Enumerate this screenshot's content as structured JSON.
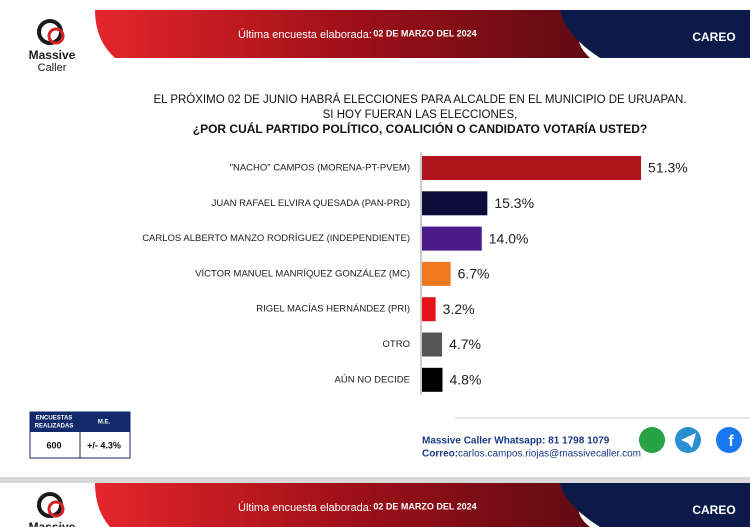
{
  "header": {
    "survey_label": "Última encuesta elaborada:",
    "survey_date": "02 DE MARZO DEL 2024",
    "tab": "CAREO"
  },
  "logo": {
    "line1": "Massive",
    "line2": "Caller"
  },
  "chart_data": {
    "type": "bar",
    "orientation": "horizontal",
    "title_lines": [
      "EL PRÓXIMO 02 DE JUNIO HABRÁ ELECCIONES PARA ALCALDE EN EL MUNICIPIO DE URUAPAN.",
      "SI HOY FUERAN LAS ELECCIONES,"
    ],
    "question": "¿POR CUÁL PARTIDO POLÍTICO, COALICIÓN O CANDIDATO VOTARÍA USTED?",
    "categories": [
      "\"NACHO\" CAMPOS (MORENA-PT-PVEM)",
      "JUAN RAFAEL ELVIRA QUESADA (PAN-PRD)",
      "CARLOS ALBERTO MANZO RODRÍGUEZ (INDEPENDIENTE)",
      "VÍCTOR MANUEL MANRÍQUEZ GONZÁLEZ (MC)",
      "RIGEL MACÍAS HERNÁNDEZ (PRI)",
      "OTRO",
      "AÚN NO DECIDE"
    ],
    "values": [
      51.3,
      15.3,
      14.0,
      6.7,
      3.2,
      4.7,
      4.8
    ],
    "value_labels": [
      "51.3%",
      "15.3%",
      "14.0%",
      "6.7%",
      "3.2%",
      "4.7%",
      "4.8%"
    ],
    "colors": [
      "#b0141c",
      "#0d0d3a",
      "#4b1b8c",
      "#f07a22",
      "#e3151b",
      "#555555",
      "#000000"
    ]
  },
  "survey_table": {
    "headers": [
      [
        "ENCUESTAS",
        "REALIZADAS"
      ],
      "M.E."
    ],
    "row": [
      "600",
      "+/- 4.3%"
    ]
  },
  "contact": {
    "whatsapp": "Massive Caller Whatsapp: 81 1798 1079",
    "email_label": "Correo:",
    "email": "carlos.campos.riojas@massivecaller.com"
  }
}
